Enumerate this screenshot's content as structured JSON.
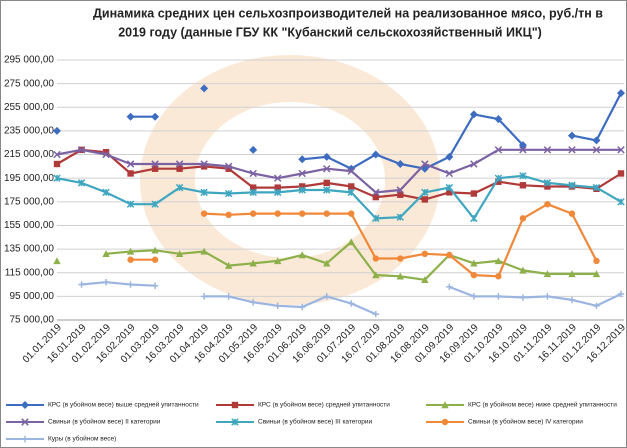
{
  "chart_data": {
    "type": "line",
    "title": [
      "Динамика средних цен сельхозпроизводителей на реализованное мясо, руб./тн в",
      "2019 году (данные ГБУ КК \"Кубанский сельскохозяйственный ИКЦ\")"
    ],
    "categories": [
      "01.01.2019",
      "16.01.2019",
      "01.02.2019",
      "16.02.2019",
      "01.03.2019",
      "16.03.2019",
      "01.04.2019",
      "16.04.2019",
      "01.05.2019",
      "16.05.2019",
      "01.06.2019",
      "16.06.2019",
      "01.07.2019",
      "16.07.2019",
      "01.08.2019",
      "16.08.2019",
      "01.09.2019",
      "16.09.2019",
      "01.10.2019",
      "16.10.2019",
      "01.11.2019",
      "16.11.2019",
      "01.12.2019",
      "16.12.2019"
    ],
    "ylim": [
      75000,
      295000
    ],
    "yticks": [
      {
        "value": 75000,
        "label": "75 000,00"
      },
      {
        "value": 95000,
        "label": "95 000,00"
      },
      {
        "value": 115000,
        "label": "115 000,00"
      },
      {
        "value": 135000,
        "label": "135 000,00"
      },
      {
        "value": 155000,
        "label": "155 000,00"
      },
      {
        "value": 175000,
        "label": "175 000,00"
      },
      {
        "value": 195000,
        "label": "195 000,00"
      },
      {
        "value": 215000,
        "label": "215 000,00"
      },
      {
        "value": 235000,
        "label": "235 000,00"
      },
      {
        "value": 255000,
        "label": "255 000,00"
      },
      {
        "value": 275000,
        "label": "275 000,00"
      },
      {
        "value": 295000,
        "label": "295 000,00"
      }
    ],
    "grid": true,
    "legend": "bottom",
    "series": [
      {
        "name": "КРС (в убойном весе) выше средней упитанности",
        "color": "#3d6cc0",
        "marker": "diamond",
        "values": [
          235000,
          null,
          null,
          247000,
          247000,
          null,
          271000,
          null,
          219000,
          null,
          211000,
          213000,
          203000,
          215000,
          207000,
          203000,
          213000,
          249000,
          245000,
          223000,
          null,
          231000,
          227000,
          267000
        ]
      },
      {
        "name": "КРС (в убойном весе) средней упитанности",
        "color": "#b03a3a",
        "marker": "square",
        "values": [
          207000,
          219000,
          217000,
          199000,
          203000,
          203000,
          205000,
          203000,
          187000,
          187000,
          188000,
          191000,
          188000,
          179000,
          181000,
          177000,
          183000,
          182000,
          192000,
          189000,
          188000,
          188000,
          186000,
          199000
        ]
      },
      {
        "name": "КРС (в убойном весе) ниже средней упитанности",
        "color": "#8db04a",
        "marker": "triangle",
        "values": [
          125000,
          null,
          131000,
          133000,
          134000,
          131000,
          133000,
          121000,
          123000,
          125000,
          130000,
          123000,
          141000,
          113000,
          112000,
          109000,
          130000,
          123000,
          125000,
          117000,
          114000,
          114000,
          114000,
          null
        ]
      },
      {
        "name": "Свиньи (в убойном весе) II категории",
        "color": "#7b62a3",
        "marker": "x",
        "values": [
          215000,
          219000,
          215000,
          207000,
          207000,
          207000,
          207000,
          205000,
          199000,
          195000,
          199000,
          203000,
          201000,
          183000,
          185000,
          207000,
          199000,
          207000,
          219000,
          219000,
          219000,
          219000,
          219000,
          219000
        ]
      },
      {
        "name": "Свиньи (в убойном весе) III категории",
        "color": "#3fa6c0",
        "marker": "star",
        "values": [
          195000,
          191000,
          183000,
          173000,
          173000,
          187000,
          183000,
          182000,
          183000,
          183000,
          185000,
          185000,
          183000,
          161000,
          162000,
          183000,
          187000,
          161000,
          195000,
          197000,
          191000,
          189000,
          187000,
          175000
        ]
      },
      {
        "name": "Свиньи (в убойном весе) IV категории",
        "color": "#f0883a",
        "marker": "circle",
        "values": [
          null,
          null,
          null,
          126000,
          126000,
          null,
          165000,
          164000,
          165000,
          165000,
          165000,
          165000,
          165000,
          127000,
          127000,
          131000,
          130000,
          113000,
          112000,
          161000,
          173000,
          165000,
          125000,
          null
        ]
      },
      {
        "name": "Куры (в убойном весе)",
        "color": "#9bb5e0",
        "marker": "plus",
        "values": [
          null,
          105000,
          107000,
          105000,
          104000,
          null,
          95000,
          95000,
          90000,
          87000,
          86000,
          95000,
          89000,
          80000,
          null,
          null,
          103000,
          95000,
          95000,
          94000,
          95000,
          92000,
          87000,
          97000
        ]
      }
    ]
  }
}
